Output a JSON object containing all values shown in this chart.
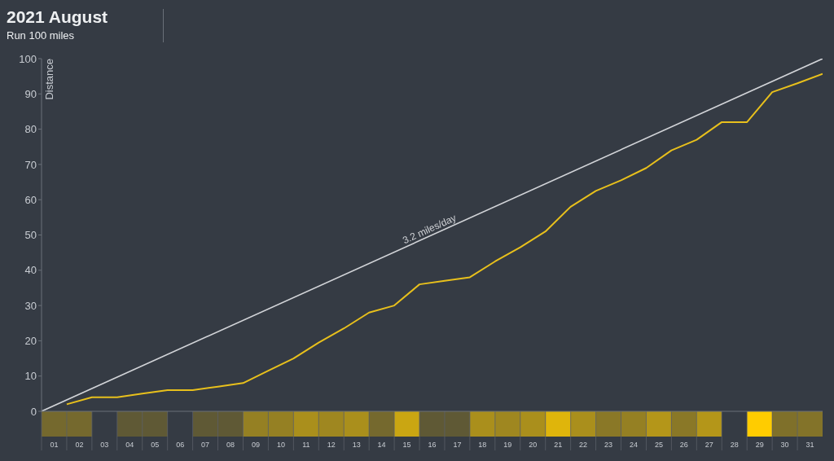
{
  "chart_data": {
    "type": "line",
    "title": "2021 August",
    "subtitle": "Run 100 miles",
    "ylabel": "Distance",
    "xlim": [
      0,
      31
    ],
    "xticks": [
      {
        "value": 0.5,
        "label": "01"
      },
      {
        "value": 1.5,
        "label": "02"
      },
      {
        "value": 2.5,
        "label": "03"
      },
      {
        "value": 3.5,
        "label": "04"
      },
      {
        "value": 4.5,
        "label": "05"
      },
      {
        "value": 5.5,
        "label": "06"
      },
      {
        "value": 6.5,
        "label": "07"
      },
      {
        "value": 7.5,
        "label": "08"
      },
      {
        "value": 8.5,
        "label": "09"
      },
      {
        "value": 9.5,
        "label": "10"
      },
      {
        "value": 10.5,
        "label": "11"
      },
      {
        "value": 11.5,
        "label": "12"
      },
      {
        "value": 12.5,
        "label": "13"
      },
      {
        "value": 13.5,
        "label": "14"
      },
      {
        "value": 14.5,
        "label": "15"
      },
      {
        "value": 15.5,
        "label": "16"
      },
      {
        "value": 16.5,
        "label": "17"
      },
      {
        "value": 17.5,
        "label": "18"
      },
      {
        "value": 18.5,
        "label": "19"
      },
      {
        "value": 19.5,
        "label": "20"
      },
      {
        "value": 20.5,
        "label": "21"
      },
      {
        "value": 21.5,
        "label": "22"
      },
      {
        "value": 22.5,
        "label": "23"
      },
      {
        "value": 23.5,
        "label": "24"
      },
      {
        "value": 24.5,
        "label": "25"
      },
      {
        "value": 25.5,
        "label": "26"
      },
      {
        "value": 26.5,
        "label": "27"
      },
      {
        "value": 27.5,
        "label": "28"
      },
      {
        "value": 28.5,
        "label": "29"
      },
      {
        "value": 29.5,
        "label": "30"
      },
      {
        "value": 30.5,
        "label": "31"
      }
    ],
    "ylim": [
      0,
      100
    ],
    "yticks": [
      0,
      10,
      20,
      30,
      40,
      50,
      60,
      70,
      80,
      90,
      100
    ],
    "grid": false,
    "legend": false,
    "marker": "none",
    "line_style": "solid",
    "series": [
      {
        "color": "#e8c01c",
        "x": [
          1,
          2,
          3,
          4,
          5,
          6,
          7,
          8,
          9,
          10,
          11,
          12,
          13,
          14,
          15,
          16,
          17,
          18,
          19,
          20,
          21,
          22,
          23,
          24,
          25,
          26,
          27,
          28,
          29,
          30,
          31
        ],
        "values": [
          2,
          4,
          4,
          5,
          6,
          6,
          7,
          8,
          11.5,
          15,
          19.5,
          23.5,
          28,
          30,
          36,
          37,
          38,
          42.5,
          46.5,
          51,
          58,
          62.5,
          65.5,
          69,
          74,
          77,
          82,
          82,
          90.5,
          93,
          95.7
        ]
      },
      {
        "name": "3.2 miles/day",
        "color": "#d2d4d8",
        "x": [
          0,
          31
        ],
        "values": [
          0,
          100
        ]
      }
    ]
  }
}
